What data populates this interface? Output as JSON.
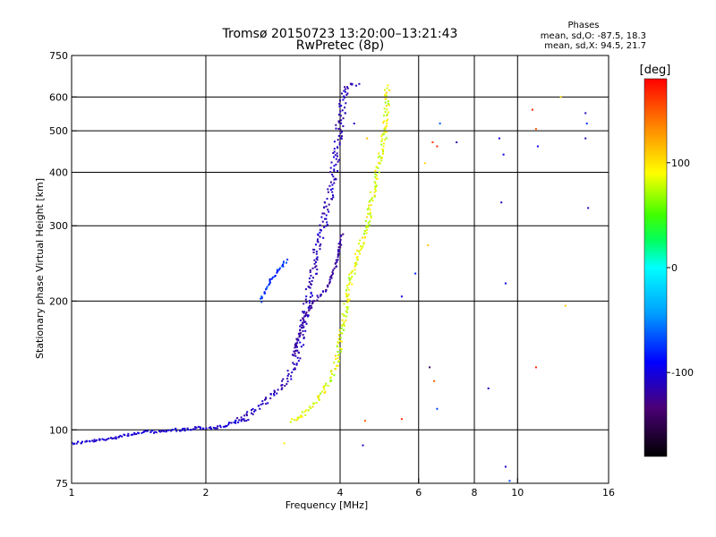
{
  "chart_data": {
    "type": "scatter",
    "title": "Tromsø 20150723 13:20:00–13:21:43",
    "subtitle": "RwPretec (8p)",
    "xlabel": "Frequency [MHz]",
    "ylabel": "Stationary phase Virtual Height [km]",
    "x_scale": "log",
    "y_scale": "log",
    "xlim": [
      1,
      16
    ],
    "ylim": [
      75,
      750
    ],
    "x_ticks": [
      1,
      2,
      4,
      6,
      8,
      10,
      16
    ],
    "x_tick_labels": [
      "1",
      "2",
      "4",
      "6",
      "8",
      "10",
      "16"
    ],
    "y_ticks": [
      75,
      100,
      200,
      300,
      400,
      500,
      600,
      750
    ],
    "y_tick_labels": [
      "75",
      "100",
      "200",
      "300",
      "400",
      "500",
      "600",
      "750"
    ],
    "grid": true,
    "legend": {
      "title": "Phases",
      "lines": [
        "mean, sd,O: -87.5, 18.3",
        "mean, sd,X:  94.5, 21.7"
      ],
      "placement": "top-right"
    },
    "colorbar": {
      "label": "[deg]",
      "ticks": [
        -100,
        0,
        100
      ],
      "range": [
        -180,
        180
      ],
      "placement": "right"
    },
    "traces": [
      {
        "phase": -105,
        "spread": 10,
        "points": [
          [
            1.0,
            93
          ],
          [
            1.1,
            94
          ],
          [
            1.2,
            95
          ],
          [
            1.3,
            97
          ],
          [
            1.4,
            98
          ],
          [
            1.5,
            99
          ],
          [
            1.6,
            99
          ],
          [
            1.7,
            100
          ],
          [
            1.8,
            100
          ],
          [
            1.9,
            101
          ],
          [
            2.0,
            101
          ],
          [
            2.1,
            101
          ],
          [
            2.2,
            102
          ],
          [
            2.3,
            104
          ],
          [
            2.4,
            105
          ],
          [
            2.5,
            106
          ]
        ]
      },
      {
        "phase": -112,
        "spread": 12,
        "points": [
          [
            2.4,
            106
          ],
          [
            2.6,
            112
          ],
          [
            2.8,
            120
          ],
          [
            3.0,
            128
          ],
          [
            3.15,
            140
          ],
          [
            3.25,
            160
          ],
          [
            3.35,
            190
          ],
          [
            3.45,
            220
          ],
          [
            3.55,
            260
          ],
          [
            3.7,
            310
          ],
          [
            3.8,
            360
          ],
          [
            3.9,
            420
          ],
          [
            4.0,
            520
          ],
          [
            4.1,
            620
          ],
          [
            4.2,
            640
          ],
          [
            4.4,
            640
          ]
        ]
      },
      {
        "phase": -120,
        "spread": 10,
        "points": [
          [
            3.15,
            150
          ],
          [
            3.3,
            180
          ],
          [
            3.5,
            200
          ],
          [
            3.75,
            215
          ],
          [
            3.9,
            240
          ],
          [
            4.05,
            290
          ]
        ]
      },
      {
        "phase": 85,
        "spread": 20,
        "points": [
          [
            3.1,
            105
          ],
          [
            3.3,
            108
          ],
          [
            3.5,
            115
          ],
          [
            3.7,
            124
          ],
          [
            3.9,
            140
          ],
          [
            4.0,
            160
          ],
          [
            4.1,
            190
          ],
          [
            4.25,
            230
          ],
          [
            4.4,
            260
          ],
          [
            4.6,
            300
          ],
          [
            4.8,
            380
          ],
          [
            5.0,
            470
          ],
          [
            5.1,
            560
          ],
          [
            5.1,
            640
          ]
        ]
      },
      {
        "phase": -75,
        "spread": 15,
        "points": [
          [
            2.65,
            200
          ],
          [
            2.8,
            225
          ],
          [
            2.95,
            240
          ],
          [
            3.05,
            250
          ]
        ]
      }
    ],
    "scatter_points": [
      {
        "x": 3.0,
        "y": 93,
        "phase": 95
      },
      {
        "x": 4.5,
        "y": 92,
        "phase": -110
      },
      {
        "x": 4.55,
        "y": 105,
        "phase": 150
      },
      {
        "x": 5.5,
        "y": 106,
        "phase": 165
      },
      {
        "x": 5.5,
        "y": 205,
        "phase": -100
      },
      {
        "x": 5.9,
        "y": 232,
        "phase": -80
      },
      {
        "x": 6.2,
        "y": 420,
        "phase": 105
      },
      {
        "x": 6.3,
        "y": 270,
        "phase": 110
      },
      {
        "x": 6.35,
        "y": 140,
        "phase": -140
      },
      {
        "x": 6.45,
        "y": 470,
        "phase": 160
      },
      {
        "x": 6.5,
        "y": 130,
        "phase": 150
      },
      {
        "x": 6.6,
        "y": 112,
        "phase": -70
      },
      {
        "x": 6.7,
        "y": 520,
        "phase": -60
      },
      {
        "x": 6.6,
        "y": 460,
        "phase": 165
      },
      {
        "x": 7.3,
        "y": 470,
        "phase": -120
      },
      {
        "x": 8.6,
        "y": 125,
        "phase": -110
      },
      {
        "x": 9.1,
        "y": 480,
        "phase": -100
      },
      {
        "x": 9.3,
        "y": 440,
        "phase": -95
      },
      {
        "x": 9.2,
        "y": 340,
        "phase": -110
      },
      {
        "x": 9.4,
        "y": 220,
        "phase": -100
      },
      {
        "x": 9.4,
        "y": 82,
        "phase": -105
      },
      {
        "x": 9.6,
        "y": 76,
        "phase": -70
      },
      {
        "x": 10.8,
        "y": 560,
        "phase": 170
      },
      {
        "x": 11.0,
        "y": 505,
        "phase": 150
      },
      {
        "x": 11.1,
        "y": 460,
        "phase": -100
      },
      {
        "x": 11.0,
        "y": 140,
        "phase": 170
      },
      {
        "x": 12.5,
        "y": 600,
        "phase": 105
      },
      {
        "x": 12.8,
        "y": 195,
        "phase": 110
      },
      {
        "x": 14.2,
        "y": 550,
        "phase": -115
      },
      {
        "x": 14.3,
        "y": 520,
        "phase": -75
      },
      {
        "x": 14.2,
        "y": 480,
        "phase": -115
      },
      {
        "x": 14.4,
        "y": 330,
        "phase": -110
      },
      {
        "x": 4.3,
        "y": 520,
        "phase": -110
      },
      {
        "x": 4.6,
        "y": 480,
        "phase": 115
      }
    ]
  }
}
